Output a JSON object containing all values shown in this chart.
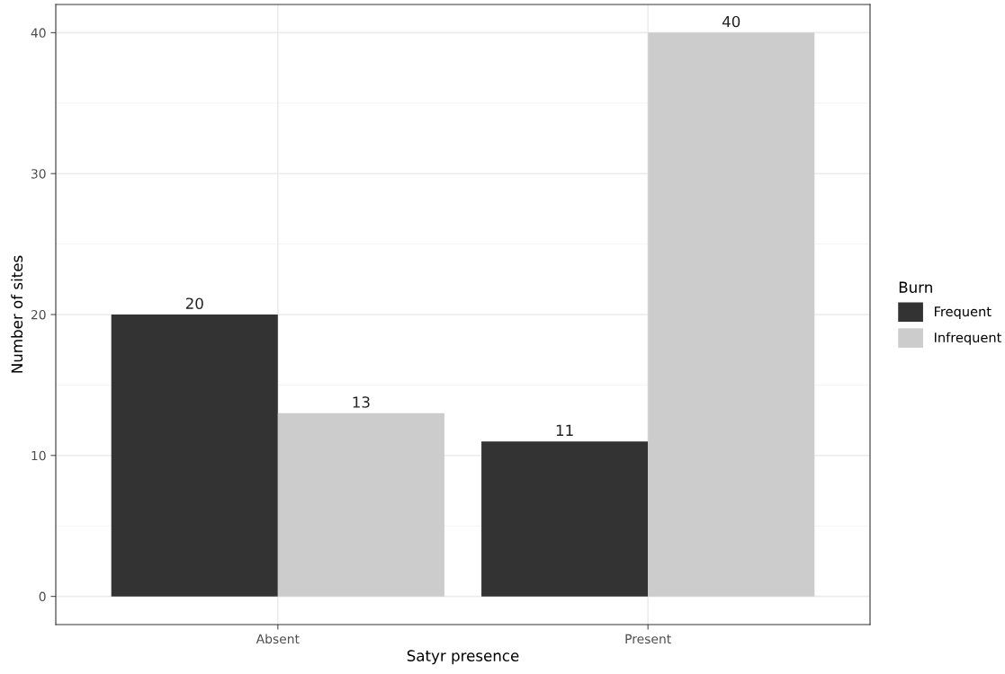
{
  "chart_data": {
    "type": "bar",
    "xlabel": "Satyr presence",
    "ylabel": "Number of sites",
    "legend_title": "Burn",
    "categories": [
      "Absent",
      "Present"
    ],
    "series": [
      {
        "name": "Frequent",
        "color": "#333333",
        "values": [
          20,
          11
        ]
      },
      {
        "name": "Infrequent",
        "color": "#cccccc",
        "values": [
          13,
          40
        ]
      }
    ],
    "ylim": [
      -2,
      42
    ],
    "yticks": [
      0,
      10,
      20,
      30,
      40
    ],
    "grid": true,
    "legend": "right",
    "data_labels": true
  }
}
